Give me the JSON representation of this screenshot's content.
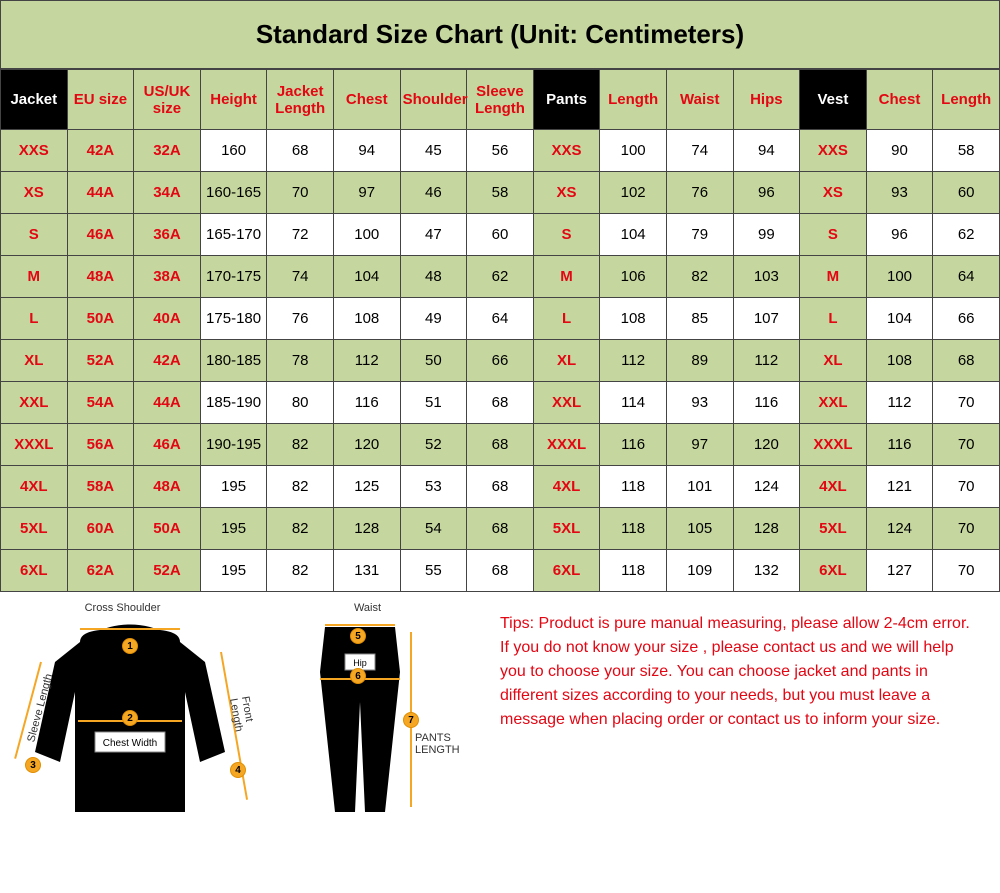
{
  "title": "Standard Size Chart (Unit: Centimeters)",
  "columns": [
    {
      "label": "Jacket",
      "class": "hdr-black"
    },
    {
      "label": "EU size",
      "class": "hdr-green"
    },
    {
      "label": "US/UK size",
      "class": "hdr-green"
    },
    {
      "label": "Height",
      "class": "hdr-green"
    },
    {
      "label": "Jacket Length",
      "class": "hdr-green"
    },
    {
      "label": "Chest",
      "class": "hdr-green"
    },
    {
      "label": "Shoulder",
      "class": "hdr-green"
    },
    {
      "label": "Sleeve Length",
      "class": "hdr-green"
    },
    {
      "label": "Pants",
      "class": "hdr-black"
    },
    {
      "label": "Length",
      "class": "hdr-green"
    },
    {
      "label": "Waist",
      "class": "hdr-green"
    },
    {
      "label": "Hips",
      "class": "hdr-green"
    },
    {
      "label": "Vest",
      "class": "hdr-black"
    },
    {
      "label": "Chest",
      "class": "hdr-green"
    },
    {
      "label": "Length",
      "class": "hdr-green"
    }
  ],
  "size_col_indices": [
    0,
    1,
    2,
    8,
    12
  ],
  "rows": [
    {
      "alt": false,
      "cells": [
        "XXS",
        "42A",
        "32A",
        "160",
        "68",
        "94",
        "45",
        "56",
        "XXS",
        "100",
        "74",
        "94",
        "XXS",
        "90",
        "58"
      ]
    },
    {
      "alt": true,
      "cells": [
        "XS",
        "44A",
        "34A",
        "160-165",
        "70",
        "97",
        "46",
        "58",
        "XS",
        "102",
        "76",
        "96",
        "XS",
        "93",
        "60"
      ]
    },
    {
      "alt": false,
      "cells": [
        "S",
        "46A",
        "36A",
        "165-170",
        "72",
        "100",
        "47",
        "60",
        "S",
        "104",
        "79",
        "99",
        "S",
        "96",
        "62"
      ]
    },
    {
      "alt": true,
      "cells": [
        "M",
        "48A",
        "38A",
        "170-175",
        "74",
        "104",
        "48",
        "62",
        "M",
        "106",
        "82",
        "103",
        "M",
        "100",
        "64"
      ]
    },
    {
      "alt": false,
      "cells": [
        "L",
        "50A",
        "40A",
        "175-180",
        "76",
        "108",
        "49",
        "64",
        "L",
        "108",
        "85",
        "107",
        "L",
        "104",
        "66"
      ]
    },
    {
      "alt": true,
      "cells": [
        "XL",
        "52A",
        "42A",
        "180-185",
        "78",
        "112",
        "50",
        "66",
        "XL",
        "112",
        "89",
        "112",
        "XL",
        "108",
        "68"
      ]
    },
    {
      "alt": false,
      "cells": [
        "XXL",
        "54A",
        "44A",
        "185-190",
        "80",
        "116",
        "51",
        "68",
        "XXL",
        "114",
        "93",
        "116",
        "XXL",
        "112",
        "70"
      ]
    },
    {
      "alt": true,
      "cells": [
        "XXXL",
        "56A",
        "46A",
        "190-195",
        "82",
        "120",
        "52",
        "68",
        "XXXL",
        "116",
        "97",
        "120",
        "XXXL",
        "116",
        "70"
      ]
    },
    {
      "alt": false,
      "cells": [
        "4XL",
        "58A",
        "48A",
        "195",
        "82",
        "125",
        "53",
        "68",
        "4XL",
        "118",
        "101",
        "124",
        "4XL",
        "121",
        "70"
      ]
    },
    {
      "alt": true,
      "cells": [
        "5XL",
        "60A",
        "50A",
        "195",
        "82",
        "128",
        "54",
        "68",
        "5XL",
        "118",
        "105",
        "128",
        "5XL",
        "124",
        "70"
      ]
    },
    {
      "alt": false,
      "cells": [
        "6XL",
        "62A",
        "52A",
        "195",
        "82",
        "131",
        "55",
        "68",
        "6XL",
        "118",
        "109",
        "132",
        "6XL",
        "127",
        "70"
      ]
    }
  ],
  "diagram": {
    "shirt_labels": {
      "cross_shoulder": "Cross Shoulder",
      "sleeve_length": "Sleeve Length",
      "chest_width": "Chest Width",
      "front_length": "Front Length"
    },
    "pants_labels": {
      "waist": "Waist",
      "hip": "Hip",
      "pants_length": "PANTS LENGTH"
    },
    "markers": [
      "1",
      "2",
      "3",
      "4",
      "5",
      "6",
      "7"
    ],
    "marker_color": "#f5a623",
    "garment_color": "#000000",
    "label_color": "#333333"
  },
  "tips_label": "Tips:",
  "tips_text": " Product is pure manual measuring, please allow 2-4cm error. If you do not know your size , please contact us and we will help you to choose your size. You can choose jacket and pants in different sizes according to your needs, but you must leave a message when placing order or contact us to inform your size.",
  "colors": {
    "green": "#c5d79e",
    "red": "#e30613",
    "black": "#000000",
    "white": "#ffffff",
    "border": "#444444",
    "orange": "#f5a623"
  }
}
